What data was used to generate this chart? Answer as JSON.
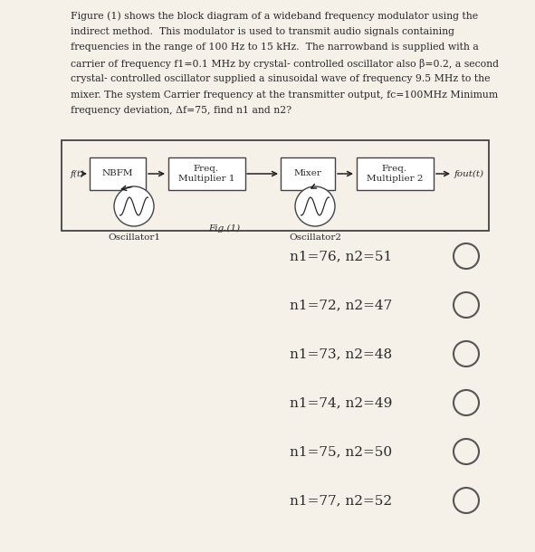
{
  "background_color": "#f5f0e8",
  "text_color": "#2a2a2a",
  "paragraph_text": "Figure (1) shows the block diagram of a wideband frequency modulator using the\nindirect method.  This modulator is used to transmit audio signals containing\nfrequencies in the range of 100 Hz to 15 kHz.  The narrowband is supplied with a\ncarrier of frequency f1=0.1 MHz by crystal- controlled oscillator also β=0.2, a second\ncrystal- controlled oscillator supplied a sinusoidal wave of frequency 9.5 MHz to the\nmixer. The system Carrier frequency at the transmitter output, fc=100MHz Minimum\nfrequency deviation, Δf=75, find n1 and n2?",
  "diagram_border_color": "#444444",
  "block_fill_color": "#ffffff",
  "block_border_color": "#444444",
  "arrow_color": "#222222",
  "choices": [
    "n1=76, n2=51",
    "n1=72, n2=47",
    "n1=73, n2=48",
    "n1=74, n2=49",
    "n1=75, n2=50",
    "n1=77, n2=52"
  ],
  "choice_fontsize": 11,
  "para_fontsize": 7.8,
  "fig_label": "Fig.(1)",
  "osc1_label": "Oscillator1",
  "osc2_label": "Oscillator2",
  "ft_in_label": "f(t)",
  "ft_out_label": "fout(t)"
}
